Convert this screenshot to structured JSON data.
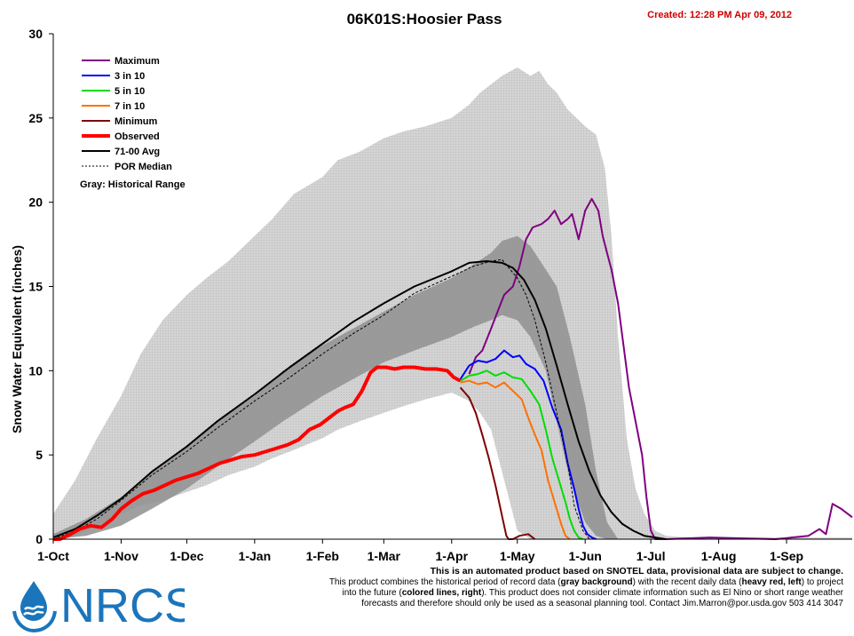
{
  "chart_data": {
    "type": "area",
    "title": "06K01S:Hoosier Pass",
    "created": "Created: 12:28 PM Apr 09, 2012",
    "ylabel": "Snow Water Equivalent (inches)",
    "xlabel": "",
    "ylim": [
      0,
      30
    ],
    "yticks": [
      "0",
      "5",
      "10",
      "15",
      "20",
      "25",
      "30"
    ],
    "xlim_days": [
      0,
      365
    ],
    "xticks": [
      {
        "label": "1-Oct",
        "day": 0
      },
      {
        "label": "1-Nov",
        "day": 31
      },
      {
        "label": "1-Dec",
        "day": 61
      },
      {
        "label": "1-Jan",
        "day": 92
      },
      {
        "label": "1-Feb",
        "day": 123
      },
      {
        "label": "1-Mar",
        "day": 151
      },
      {
        "label": "1-Apr",
        "day": 182
      },
      {
        "label": "1-May",
        "day": 212
      },
      {
        "label": "1-Jun",
        "day": 243
      },
      {
        "label": "1-Jul",
        "day": 273
      },
      {
        "label": "1-Aug",
        "day": 304
      },
      {
        "label": "1-Sep",
        "day": 335
      }
    ],
    "legend_position": "top-left",
    "legend": [
      {
        "label": "Maximum",
        "color": "#800080",
        "style": "line"
      },
      {
        "label": "3 in 10",
        "color": "#0000ff",
        "style": "line"
      },
      {
        "label": "5 in 10",
        "color": "#00dd00",
        "style": "line"
      },
      {
        "label": "7 in 10",
        "color": "#ff7000",
        "style": "line"
      },
      {
        "label": "Minimum",
        "color": "#800000",
        "style": "line"
      },
      {
        "label": "Observed",
        "color": "#ff0000",
        "style": "thick"
      },
      {
        "label": "71-00 Avg",
        "color": "#000000",
        "style": "line"
      },
      {
        "label": "POR Median",
        "color": "#000000",
        "style": "dashed"
      }
    ],
    "legend_note": "Gray: Historical Range",
    "band_outer": {
      "x": [
        0,
        10,
        20,
        31,
        40,
        50,
        61,
        70,
        80,
        92,
        100,
        110,
        123,
        130,
        140,
        151,
        160,
        170,
        182,
        190,
        195,
        200,
        205,
        212,
        218,
        222,
        226,
        230,
        235,
        243,
        248,
        252,
        255,
        258,
        262,
        266,
        270,
        275,
        280,
        290,
        300,
        320,
        340,
        365
      ],
      "upper": [
        1.5,
        3.5,
        6.0,
        8.5,
        11.0,
        13.0,
        14.5,
        15.5,
        16.5,
        18.0,
        19.0,
        20.5,
        21.5,
        22.5,
        23.0,
        23.8,
        24.2,
        24.5,
        25.0,
        25.8,
        26.5,
        27.0,
        27.5,
        28.0,
        27.5,
        27.8,
        27.0,
        26.5,
        25.5,
        24.5,
        24.0,
        22.0,
        18.0,
        12.0,
        6.0,
        3.0,
        1.5,
        0.5,
        0.2,
        0.1,
        0.1,
        0.1,
        0.1,
        0.1
      ],
      "lower": [
        0,
        0.2,
        0.8,
        1.5,
        2.0,
        2.3,
        2.8,
        3.2,
        3.8,
        4.3,
        4.8,
        5.3,
        6.0,
        6.5,
        7.0,
        7.5,
        7.9,
        8.3,
        8.7,
        8.2,
        7.5,
        6.5,
        4.0,
        0.5,
        0,
        0,
        0,
        0,
        0,
        0,
        0,
        0,
        0,
        0,
        0,
        0,
        0,
        0,
        0,
        0,
        0,
        0,
        0,
        0
      ]
    },
    "band_inner": {
      "x": [
        0,
        15,
        31,
        45,
        61,
        75,
        92,
        105,
        123,
        137,
        151,
        165,
        182,
        192,
        200,
        205,
        212,
        218,
        225,
        230,
        236,
        243,
        248,
        253,
        258
      ],
      "upper": [
        0.3,
        1.2,
        2.5,
        4.0,
        5.5,
        7.0,
        8.5,
        10.0,
        11.5,
        12.5,
        13.5,
        14.5,
        15.5,
        16.3,
        17.0,
        17.7,
        18.0,
        17.4,
        16.0,
        15.0,
        12.0,
        8.0,
        4.0,
        1.0,
        0
      ],
      "lower": [
        0,
        0.2,
        0.8,
        1.8,
        3.0,
        4.3,
        5.8,
        7.0,
        8.5,
        9.5,
        10.5,
        11.2,
        12.0,
        12.6,
        13.0,
        13.3,
        13.0,
        12.0,
        10.0,
        7.0,
        3.5,
        1.0,
        0.2,
        0,
        0
      ]
    },
    "series": [
      {
        "name": "71-00 Avg",
        "color": "#000000",
        "x": [
          0,
          10,
          20,
          31,
          45,
          61,
          75,
          92,
          108,
          123,
          137,
          151,
          165,
          182,
          190,
          198,
          205,
          210,
          215,
          220,
          225,
          230,
          235,
          240,
          245,
          250,
          255,
          260,
          265,
          270,
          275,
          280
        ],
        "y": [
          0.1,
          0.6,
          1.4,
          2.4,
          4.0,
          5.5,
          7.0,
          8.6,
          10.2,
          11.6,
          12.9,
          14.0,
          15.0,
          15.9,
          16.4,
          16.5,
          16.4,
          16.1,
          15.4,
          14.2,
          12.5,
          10.3,
          8.0,
          5.8,
          4.0,
          2.6,
          1.6,
          0.9,
          0.5,
          0.2,
          0.1,
          0
        ]
      },
      {
        "name": "POR Median",
        "color": "#000000",
        "dashed": true,
        "x": [
          0,
          10,
          20,
          31,
          45,
          61,
          75,
          92,
          108,
          123,
          137,
          151,
          165,
          182,
          192,
          200,
          205,
          212,
          216,
          220,
          225,
          230,
          235,
          238,
          242,
          245
        ],
        "y": [
          0,
          0.5,
          1.2,
          2.3,
          3.8,
          5.2,
          6.6,
          8.2,
          9.6,
          11.0,
          12.2,
          13.3,
          14.6,
          15.6,
          16.2,
          16.5,
          16.6,
          15.5,
          14.5,
          13.0,
          10.5,
          7.5,
          4.5,
          2.0,
          0.5,
          0
        ]
      },
      {
        "name": "Observed",
        "color": "#ff0000",
        "x": [
          0,
          3,
          8,
          12,
          17,
          22,
          27,
          31,
          36,
          41,
          46,
          51,
          56,
          61,
          66,
          71,
          76,
          81,
          86,
          92,
          97,
          102,
          107,
          112,
          117,
          122,
          127,
          130,
          133,
          137,
          141,
          145,
          148,
          152,
          156,
          160,
          165,
          170,
          175,
          180,
          183,
          186
        ],
        "y": [
          0,
          0,
          0.3,
          0.6,
          0.8,
          0.7,
          1.2,
          1.8,
          2.3,
          2.7,
          2.9,
          3.2,
          3.5,
          3.7,
          3.9,
          4.2,
          4.5,
          4.7,
          4.9,
          5.0,
          5.2,
          5.4,
          5.6,
          5.9,
          6.5,
          6.8,
          7.3,
          7.6,
          7.8,
          8.0,
          8.8,
          9.9,
          10.2,
          10.2,
          10.1,
          10.2,
          10.2,
          10.1,
          10.1,
          10.0,
          9.6,
          9.4
        ]
      },
      {
        "name": "Maximum",
        "color": "#800080",
        "x": [
          190,
          193,
          196,
          200,
          203,
          206,
          210,
          213,
          216,
          219,
          223,
          226,
          229,
          232,
          235,
          237,
          240,
          243,
          246,
          249,
          251,
          253,
          255,
          258,
          261,
          263,
          266,
          269,
          271,
          273,
          275,
          276,
          280,
          300,
          330,
          345,
          350,
          353,
          356,
          360,
          365
        ],
        "y": [
          9.8,
          10.8,
          11.2,
          12.5,
          13.5,
          14.5,
          15.0,
          16.2,
          17.8,
          18.5,
          18.7,
          19.0,
          19.5,
          18.7,
          19.0,
          19.3,
          17.8,
          19.5,
          20.2,
          19.5,
          18.0,
          17.0,
          16.0,
          14.0,
          11.0,
          9.0,
          7.0,
          5.0,
          2.5,
          0.5,
          0,
          0,
          0,
          0.1,
          0,
          0.2,
          0.6,
          0.3,
          2.1,
          1.8,
          1.3
        ]
      },
      {
        "name": "3 in 10",
        "color": "#0000ff",
        "x": [
          186,
          190,
          194,
          198,
          202,
          206,
          210,
          213,
          216,
          220,
          224,
          228,
          232,
          235,
          238,
          240,
          242,
          244,
          246,
          248
        ],
        "y": [
          9.5,
          10.3,
          10.6,
          10.5,
          10.7,
          11.2,
          10.8,
          10.9,
          10.4,
          10.1,
          9.4,
          7.8,
          6.5,
          4.5,
          3.0,
          1.8,
          0.8,
          0.3,
          0.1,
          0
        ]
      },
      {
        "name": "5 in 10",
        "color": "#00dd00",
        "x": [
          186,
          190,
          194,
          198,
          202,
          206,
          210,
          214,
          218,
          222,
          225,
          228,
          231,
          234,
          236,
          238,
          240,
          242
        ],
        "y": [
          9.4,
          9.7,
          9.8,
          10.0,
          9.7,
          9.9,
          9.6,
          9.5,
          8.8,
          8.0,
          6.5,
          4.8,
          3.5,
          2.2,
          1.2,
          0.5,
          0.1,
          0
        ]
      },
      {
        "name": "7 in 10",
        "color": "#ff7000",
        "x": [
          186,
          190,
          194,
          198,
          202,
          206,
          210,
          214,
          217,
          220,
          223,
          226,
          229,
          232,
          234,
          236
        ],
        "y": [
          9.3,
          9.4,
          9.2,
          9.3,
          9.0,
          9.3,
          8.8,
          8.3,
          7.2,
          6.2,
          5.3,
          3.5,
          2.2,
          0.9,
          0.2,
          0
        ]
      },
      {
        "name": "Minimum",
        "color": "#800000",
        "x": [
          186,
          188,
          190,
          193,
          196,
          199,
          202,
          204,
          206,
          207,
          208,
          210,
          213,
          217,
          220
        ],
        "y": [
          9.0,
          8.7,
          8.4,
          7.5,
          6.2,
          4.8,
          3.2,
          2.0,
          0.8,
          0.2,
          0,
          0,
          0.2,
          0.3,
          0
        ]
      }
    ]
  },
  "disclaimer": {
    "line1": "This is an automated product based on SNOTEL data, provisional data are subject to change.",
    "line2a": "This product combines the historical period of record data (",
    "line2b": "gray background",
    "line2c": ") with the recent daily data (",
    "line2d": "heavy red, left",
    "line2e": ") to project",
    "line3a": "into the future (",
    "line3b": "colored lines, right",
    "line3c": "). This product does not consider climate information such as El Nino or short range weather",
    "line4": "forecasts and therefore should only be used as a seasonal planning tool. Contact Jim.Marron@por.usda.gov 503 414 3047"
  },
  "logo": {
    "text": "NRCS",
    "color": "#1b75bb"
  }
}
